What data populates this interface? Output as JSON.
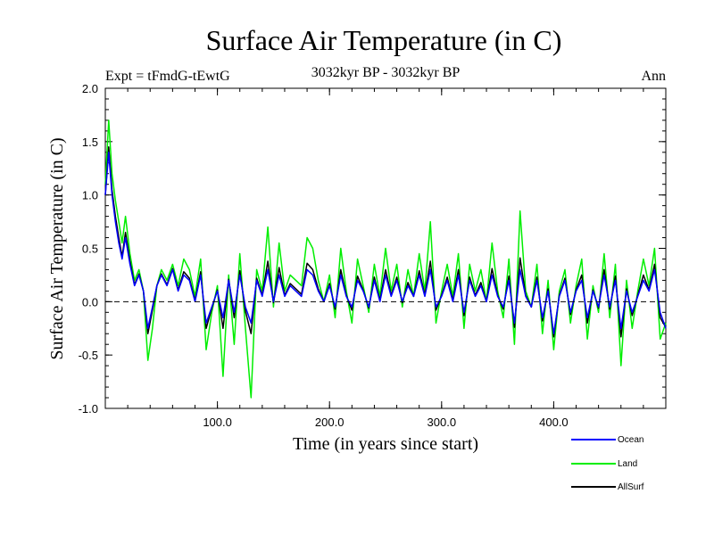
{
  "chart_data": {
    "type": "line",
    "title": "Surface Air Temperature (in C)",
    "subtitle_left": "Expt = tFmdG-tEwtG",
    "subtitle_center": "3032kyr BP - 3032kyr BP",
    "subtitle_right": "Ann",
    "xlabel": "Time (in years since start)",
    "ylabel": "Surface Air Temperature (in C)",
    "xlim": [
      0,
      500
    ],
    "ylim": [
      -1.0,
      2.0
    ],
    "xticks": [
      100,
      200,
      300,
      400
    ],
    "xtick_labels": [
      "100.0",
      "200.0",
      "300.0",
      "400.0"
    ],
    "yticks": [
      -1.0,
      -0.5,
      0.0,
      0.5,
      1.0,
      1.5,
      2.0
    ],
    "ytick_labels": [
      "-1.0",
      "-0.5",
      "0.0",
      "0.5",
      "1.0",
      "1.5",
      "2.0"
    ],
    "zero_line": true,
    "series": [
      {
        "name": "Land",
        "color": "#00ee00",
        "x": [
          0,
          3,
          6,
          9,
          12,
          15,
          18,
          22,
          26,
          30,
          34,
          38,
          42,
          46,
          50,
          55,
          60,
          65,
          70,
          75,
          80,
          85,
          90,
          95,
          100,
          105,
          110,
          115,
          120,
          125,
          130,
          135,
          140,
          145,
          150,
          155,
          160,
          165,
          170,
          175,
          180,
          185,
          190,
          195,
          200,
          205,
          210,
          215,
          220,
          225,
          230,
          235,
          240,
          245,
          250,
          255,
          260,
          265,
          270,
          275,
          280,
          285,
          290,
          295,
          300,
          305,
          310,
          315,
          320,
          325,
          330,
          335,
          340,
          345,
          350,
          355,
          360,
          365,
          370,
          375,
          380,
          385,
          390,
          395,
          400,
          405,
          410,
          415,
          420,
          425,
          430,
          435,
          440,
          445,
          450,
          455,
          460,
          465,
          470,
          475,
          480,
          485,
          490,
          495,
          500
        ],
        "values": [
          1.1,
          1.7,
          1.2,
          0.95,
          0.75,
          0.55,
          0.8,
          0.45,
          0.2,
          0.3,
          0.1,
          -0.55,
          -0.25,
          0.15,
          0.3,
          0.2,
          0.35,
          0.15,
          0.4,
          0.3,
          0.05,
          0.4,
          -0.45,
          -0.1,
          0.15,
          -0.7,
          0.25,
          -0.4,
          0.45,
          -0.25,
          -0.9,
          0.3,
          0.1,
          0.7,
          -0.05,
          0.55,
          0.1,
          0.25,
          0.2,
          0.15,
          0.6,
          0.5,
          0.2,
          0.0,
          0.25,
          -0.15,
          0.5,
          0.1,
          -0.2,
          0.4,
          0.15,
          -0.1,
          0.35,
          0.05,
          0.5,
          0.1,
          0.35,
          -0.05,
          0.3,
          0.05,
          0.45,
          0.1,
          0.75,
          -0.2,
          0.1,
          0.35,
          0.05,
          0.45,
          -0.25,
          0.35,
          0.1,
          0.3,
          0.0,
          0.55,
          0.1,
          -0.15,
          0.4,
          -0.4,
          0.85,
          0.1,
          -0.05,
          0.35,
          -0.3,
          0.2,
          -0.45,
          0.1,
          0.3,
          -0.2,
          0.15,
          0.4,
          -0.35,
          0.15,
          -0.1,
          0.45,
          -0.15,
          0.35,
          -0.6,
          0.2,
          -0.25,
          0.1,
          0.4,
          0.15,
          0.5,
          -0.35,
          -0.2
        ]
      },
      {
        "name": "Ocean",
        "color": "#0000ff",
        "x": [
          0,
          3,
          6,
          9,
          12,
          15,
          18,
          22,
          26,
          30,
          34,
          38,
          42,
          46,
          50,
          55,
          60,
          65,
          70,
          75,
          80,
          85,
          90,
          95,
          100,
          105,
          110,
          115,
          120,
          125,
          130,
          135,
          140,
          145,
          150,
          155,
          160,
          165,
          170,
          175,
          180,
          185,
          190,
          195,
          200,
          205,
          210,
          215,
          220,
          225,
          230,
          235,
          240,
          245,
          250,
          255,
          260,
          265,
          270,
          275,
          280,
          285,
          290,
          295,
          300,
          305,
          310,
          315,
          320,
          325,
          330,
          335,
          340,
          345,
          350,
          355,
          360,
          365,
          370,
          375,
          380,
          385,
          390,
          395,
          400,
          405,
          410,
          415,
          420,
          425,
          430,
          435,
          440,
          445,
          450,
          455,
          460,
          465,
          470,
          475,
          480,
          485,
          490,
          495,
          500
        ],
        "values": [
          1.0,
          1.4,
          1.0,
          0.75,
          0.55,
          0.4,
          0.6,
          0.35,
          0.15,
          0.25,
          0.1,
          -0.25,
          -0.05,
          0.15,
          0.25,
          0.15,
          0.3,
          0.1,
          0.25,
          0.2,
          0.0,
          0.25,
          -0.2,
          -0.05,
          0.1,
          -0.15,
          0.2,
          -0.1,
          0.25,
          -0.05,
          -0.2,
          0.2,
          0.05,
          0.3,
          0.0,
          0.25,
          0.05,
          0.15,
          0.1,
          0.05,
          0.3,
          0.25,
          0.1,
          0.0,
          0.15,
          -0.05,
          0.25,
          0.05,
          -0.05,
          0.2,
          0.1,
          -0.05,
          0.2,
          0.0,
          0.25,
          0.05,
          0.2,
          0.0,
          0.15,
          0.05,
          0.25,
          0.05,
          0.3,
          -0.05,
          0.05,
          0.2,
          0.0,
          0.25,
          -0.1,
          0.2,
          0.05,
          0.15,
          0.0,
          0.25,
          0.05,
          -0.05,
          0.2,
          -0.2,
          0.3,
          0.05,
          -0.05,
          0.2,
          -0.15,
          0.1,
          -0.3,
          0.05,
          0.2,
          -0.1,
          0.1,
          0.2,
          -0.15,
          0.1,
          -0.05,
          0.25,
          -0.05,
          0.2,
          -0.25,
          0.1,
          -0.1,
          0.05,
          0.2,
          0.1,
          0.3,
          -0.1,
          -0.25
        ]
      },
      {
        "name": "AllSurf",
        "color": "#000000",
        "x": [
          0,
          3,
          6,
          9,
          12,
          15,
          18,
          22,
          26,
          30,
          34,
          38,
          42,
          46,
          50,
          55,
          60,
          65,
          70,
          75,
          80,
          85,
          90,
          95,
          100,
          105,
          110,
          115,
          120,
          125,
          130,
          135,
          140,
          145,
          150,
          155,
          160,
          165,
          170,
          175,
          180,
          185,
          190,
          195,
          200,
          205,
          210,
          215,
          220,
          225,
          230,
          235,
          240,
          245,
          250,
          255,
          260,
          265,
          270,
          275,
          280,
          285,
          290,
          295,
          300,
          305,
          310,
          315,
          320,
          325,
          330,
          335,
          340,
          345,
          350,
          355,
          360,
          365,
          370,
          375,
          380,
          385,
          390,
          395,
          400,
          405,
          410,
          415,
          420,
          425,
          430,
          435,
          440,
          445,
          450,
          455,
          460,
          465,
          470,
          475,
          480,
          485,
          490,
          495,
          500
        ],
        "values": [
          1.0,
          1.45,
          1.05,
          0.8,
          0.6,
          0.42,
          0.65,
          0.38,
          0.16,
          0.26,
          0.1,
          -0.3,
          -0.08,
          0.15,
          0.26,
          0.16,
          0.31,
          0.11,
          0.28,
          0.22,
          0.01,
          0.28,
          -0.25,
          -0.06,
          0.11,
          -0.25,
          0.21,
          -0.15,
          0.29,
          -0.09,
          -0.3,
          0.22,
          0.06,
          0.38,
          -0.01,
          0.32,
          0.06,
          0.17,
          0.12,
          0.07,
          0.36,
          0.3,
          0.12,
          0.0,
          0.17,
          -0.07,
          0.3,
          0.06,
          -0.08,
          0.24,
          0.11,
          -0.06,
          0.23,
          0.01,
          0.3,
          0.06,
          0.23,
          -0.01,
          0.18,
          0.05,
          0.29,
          0.06,
          0.38,
          -0.08,
          0.06,
          0.23,
          0.01,
          0.3,
          -0.13,
          0.23,
          0.06,
          0.18,
          0.0,
          0.31,
          0.06,
          -0.07,
          0.24,
          -0.24,
          0.41,
          0.06,
          -0.05,
          0.23,
          -0.18,
          0.12,
          -0.33,
          0.06,
          0.22,
          -0.12,
          0.11,
          0.25,
          -0.2,
          0.11,
          -0.06,
          0.3,
          -0.07,
          0.24,
          -0.33,
          0.12,
          -0.13,
          0.06,
          0.25,
          0.11,
          0.35,
          -0.15,
          -0.24
        ]
      }
    ],
    "legend_placement": "bottom-right, outside plot"
  }
}
